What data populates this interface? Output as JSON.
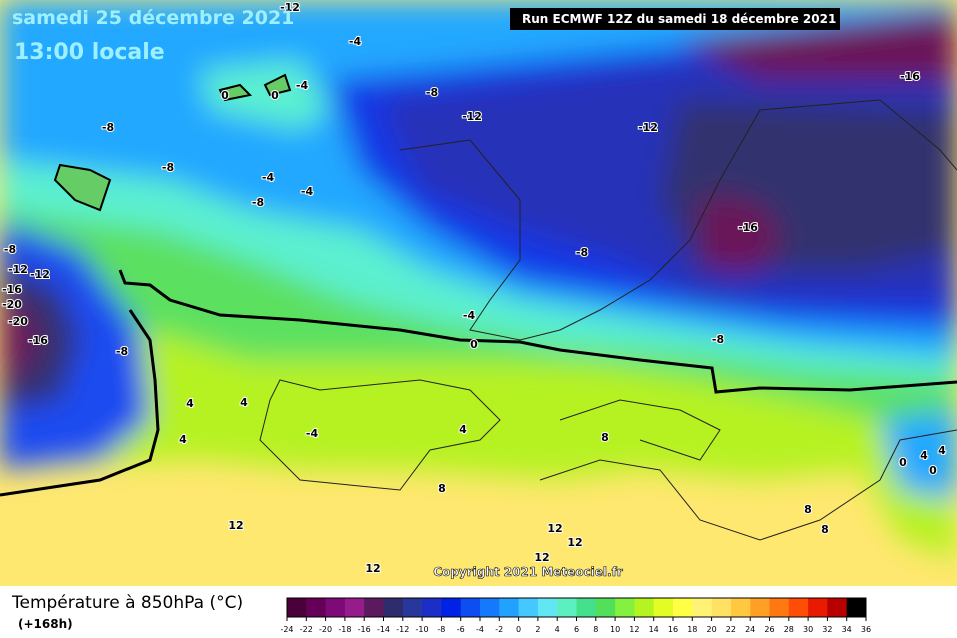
{
  "header": {
    "date": "samedi 25 décembre 2021",
    "time": "13:00 locale",
    "run": "Run ECMWF 12Z du samedi 18 décembre 2021"
  },
  "map": {
    "contour_labels": [
      -12,
      -4,
      0,
      0,
      -4,
      -8,
      -12,
      -12,
      -16,
      -8,
      -8,
      -4,
      -4,
      -8,
      -16,
      -8,
      -8,
      -12,
      -12,
      -16,
      -20,
      -20,
      -16,
      -8,
      -4,
      0,
      -8,
      4,
      4,
      4,
      -4,
      4,
      8,
      8,
      12,
      12,
      12,
      12,
      12,
      8,
      8,
      0,
      4,
      4,
      0
    ],
    "copyright": "Copyright 2021 Meteociel.fr"
  },
  "legend": {
    "title": "Température à 850hPa (°C)",
    "lead": "(+168h)",
    "ticks": [
      -24,
      -22,
      -20,
      -18,
      -16,
      -14,
      -12,
      -10,
      -8,
      -6,
      -4,
      -2,
      0,
      2,
      4,
      6,
      8,
      10,
      12,
      14,
      16,
      18,
      20,
      22,
      24,
      26,
      28,
      30,
      32,
      34,
      36
    ],
    "colors": [
      "#4a0038",
      "#640058",
      "#7e0a78",
      "#961c8c",
      "#5c1a5e",
      "#2e2c6c",
      "#28389a",
      "#1c2ec8",
      "#0022e6",
      "#0c4ef0",
      "#1678fc",
      "#22a2ff",
      "#44c8ff",
      "#62e6f4",
      "#5cf0c0",
      "#44e08c",
      "#52e05a",
      "#84f040",
      "#b4f420",
      "#e2fc24",
      "#ffff44",
      "#fff274",
      "#ffe264",
      "#ffc840",
      "#ffa024",
      "#ff7812",
      "#ff4c06",
      "#e81a00",
      "#b80000",
      "#000000"
    ]
  }
}
